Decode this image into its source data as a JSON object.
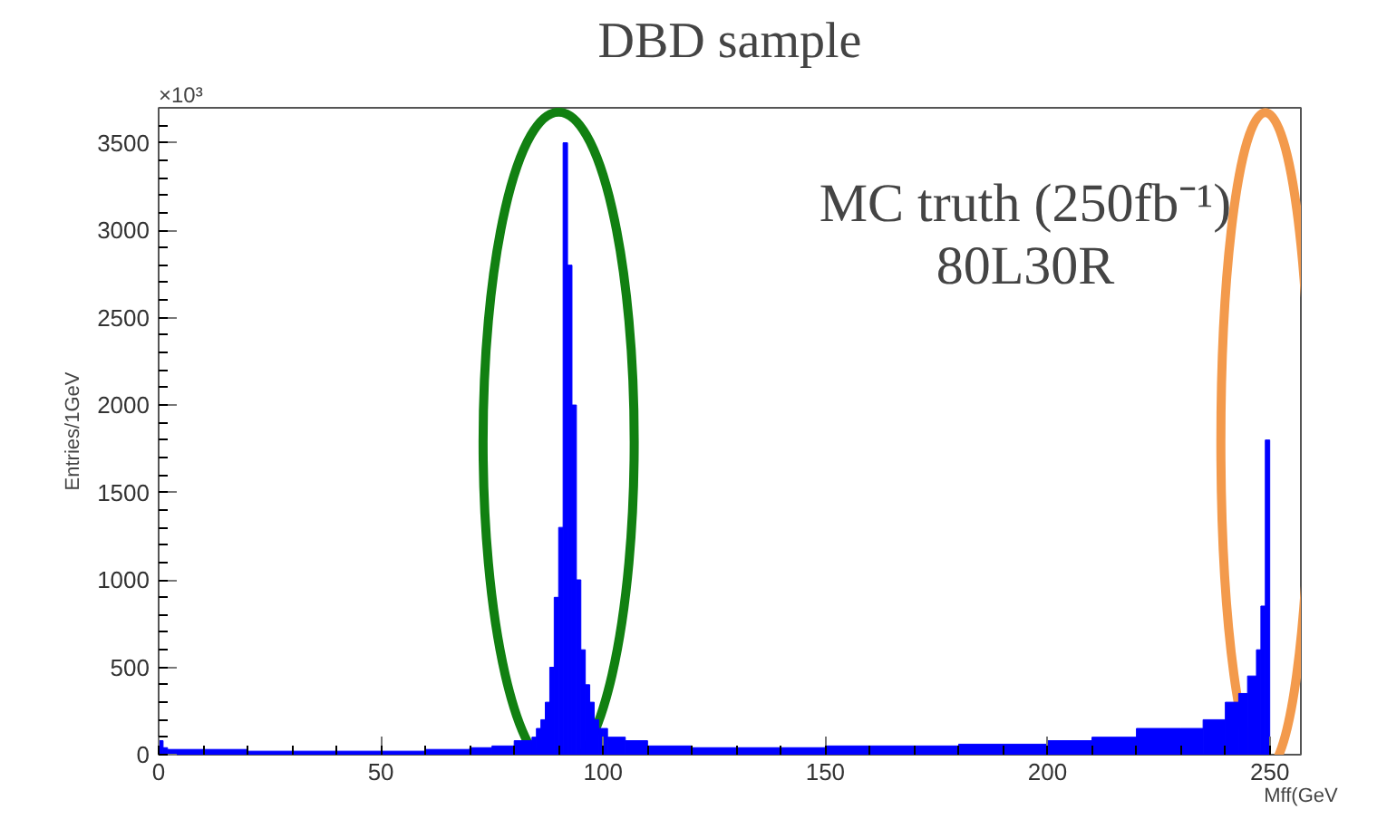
{
  "chart_data": {
    "type": "histogram",
    "title": "DBD sample",
    "xlabel": "Mff(GeV",
    "ylabel": "Entries/1GeV",
    "annotations": [
      "×10³",
      "MC truth (250fb⁻¹)",
      "80L30R"
    ],
    "bins": [
      0,
      1,
      2,
      10,
      20,
      60,
      70,
      75,
      80,
      84,
      85,
      86,
      87,
      88,
      89,
      90,
      91,
      92,
      93,
      94,
      95,
      96,
      97,
      98,
      99,
      100,
      101,
      105,
      110,
      120,
      150,
      180,
      200,
      210,
      220,
      230,
      235,
      240,
      243,
      245,
      247,
      248,
      249,
      250
    ],
    "values": [
      80,
      40,
      30,
      30,
      20,
      30,
      40,
      50,
      80,
      100,
      150,
      200,
      300,
      500,
      900,
      1300,
      3500,
      2800,
      2000,
      1000,
      600,
      400,
      300,
      200,
      150,
      150,
      100,
      80,
      50,
      40,
      50,
      60,
      80,
      100,
      150,
      150,
      200,
      300,
      350,
      450,
      600,
      850,
      1800
    ],
    "color": "#0000ff",
    "xlim": [
      0,
      257
    ],
    "ylim": [
      0,
      3700
    ],
    "xticks": [
      0,
      50,
      100,
      150,
      200,
      250
    ],
    "yticks": [
      0,
      500,
      1000,
      1500,
      2000,
      2500,
      3000,
      3500
    ],
    "grid": false
  }
}
